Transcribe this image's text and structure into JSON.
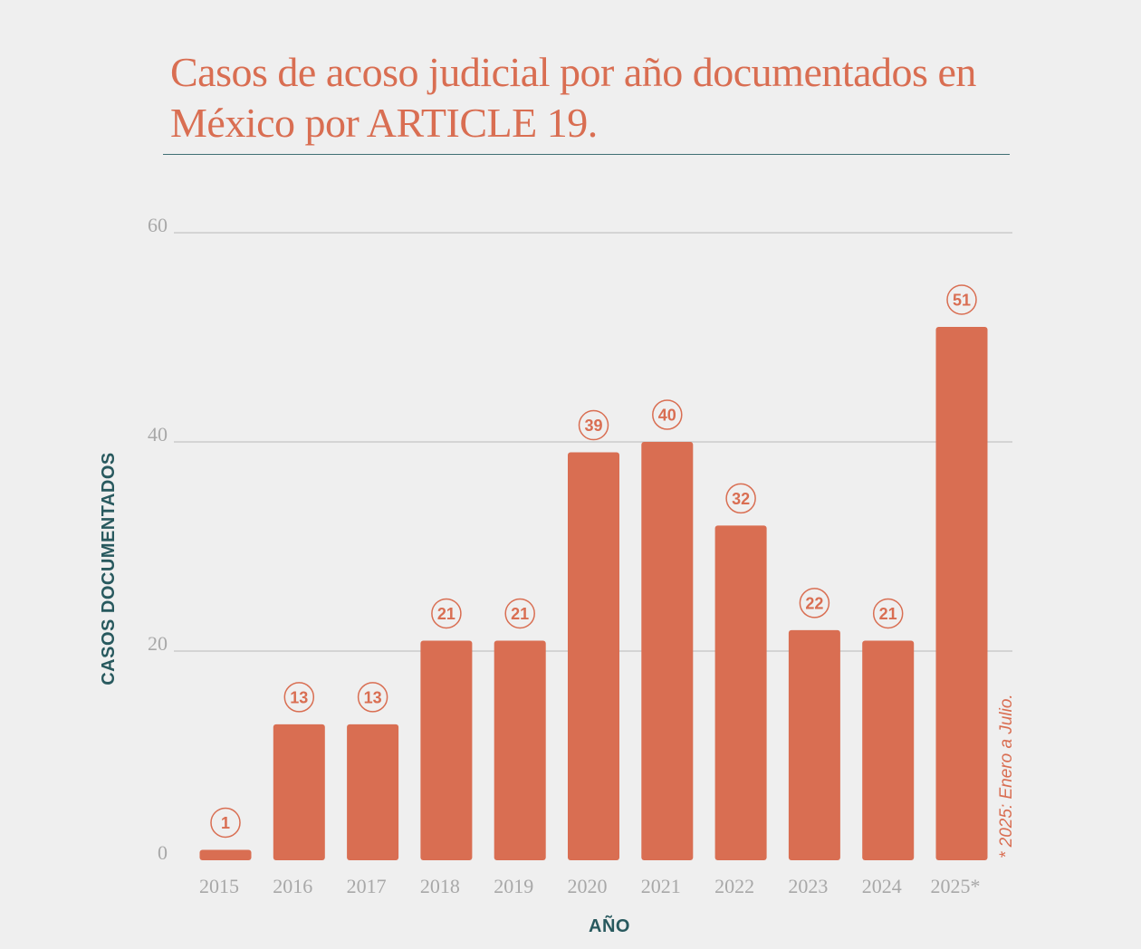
{
  "title": "Casos de acoso judicial por año documentados en México por ARTICLE 19.",
  "note": "* 2025: Enero a Julio.",
  "colors": {
    "background": "#efefef",
    "bar": "#d96e52",
    "title": "#d96e52",
    "axis_title": "#28595e",
    "rule": "#3f6f73",
    "grid": "#b9b9b9",
    "tick": "#a8a8a8"
  },
  "chart_data": {
    "type": "bar",
    "title": "Casos de acoso judicial por año documentados en México por ARTICLE 19.",
    "xlabel": "AÑO",
    "ylabel": "CASOS DOCUMENTADOS",
    "categories": [
      "2015",
      "2016",
      "2017",
      "2018",
      "2019",
      "2020",
      "2021",
      "2022",
      "2023",
      "2024",
      "2025*"
    ],
    "values": [
      1,
      13,
      13,
      21,
      21,
      39,
      40,
      32,
      22,
      21,
      51
    ],
    "ylim": [
      0,
      60
    ],
    "yticks": [
      0,
      20,
      40,
      60
    ],
    "grid": true,
    "data_labels": true,
    "legend": "none"
  }
}
